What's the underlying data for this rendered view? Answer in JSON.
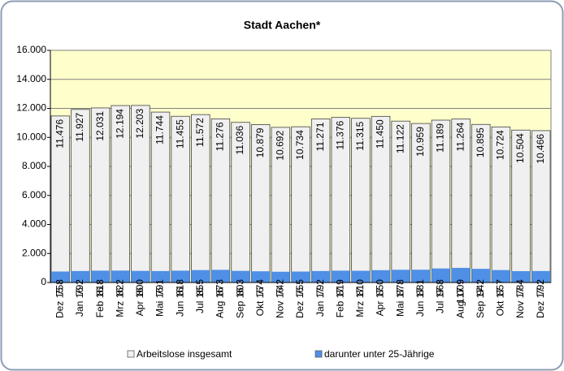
{
  "chart_data": {
    "type": "bar",
    "title": "Stadt Aachen*",
    "categories": [
      "Dez 15",
      "Jan 16",
      "Feb 16",
      "Mrz 16",
      "Apr 16",
      "Mai 16",
      "Jun 16",
      "Jul 16",
      "Aug 16",
      "Sep 16",
      "Okt 16",
      "Nov 16",
      "Dez 16",
      "Jan 17",
      "Feb 17",
      "Mrz 17",
      "Apr 17",
      "Mai 17",
      "Jun 17",
      "Jul 17",
      "Aug 17",
      "Sep 17",
      "Okt 17",
      "Nov 17",
      "Dez 17"
    ],
    "series": [
      {
        "name": "Arbeitslose insgesamt",
        "color": "#f0f0f0",
        "values": [
          11476,
          11927,
          12031,
          12194,
          12203,
          11744,
          11455,
          11572,
          11276,
          11036,
          10879,
          10692,
          10734,
          11271,
          11376,
          11315,
          11450,
          11122,
          10959,
          11189,
          11264,
          10895,
          10724,
          10504,
          10466
        ],
        "value_labels": [
          "11.476",
          "11.927",
          "12.031",
          "12.194",
          "12.203",
          "11.744",
          "11.455",
          "11.572",
          "11.276",
          "11.036",
          "10.879",
          "10.692",
          "10.734",
          "11.271",
          "11.376",
          "11.315",
          "11.450",
          "11.122",
          "10.959",
          "11.189",
          "11.264",
          "10.895",
          "10.724",
          "10.504",
          "10.466"
        ]
      },
      {
        "name": "darunter unter 25-Jährige",
        "color": "#4f8fe6",
        "values": [
          758,
          792,
          818,
          822,
          800,
          791,
          818,
          855,
          873,
          803,
          774,
          742,
          755,
          792,
          819,
          810,
          850,
          878,
          881,
          968,
          1009,
          942,
          857,
          784,
          792
        ],
        "value_labels": [
          "758",
          "792",
          "818",
          "822",
          "800",
          "791",
          "818",
          "855",
          "873",
          "803",
          "774",
          "742",
          "755",
          "792",
          "819",
          "810",
          "850",
          "878",
          "881",
          "968",
          "1.009",
          "942",
          "857",
          "784",
          "792"
        ]
      }
    ],
    "ylim": [
      0,
      16000
    ],
    "yticks": [
      {
        "value": 0,
        "label": "0"
      },
      {
        "value": 2000,
        "label": "2.000"
      },
      {
        "value": 4000,
        "label": "4.000"
      },
      {
        "value": 6000,
        "label": "6.000"
      },
      {
        "value": 8000,
        "label": "8.000"
      },
      {
        "value": 10000,
        "label": "10.000"
      },
      {
        "value": 12000,
        "label": "12.000"
      },
      {
        "value": 14000,
        "label": "14.000"
      },
      {
        "value": 16000,
        "label": "16.000"
      }
    ],
    "grid": true
  }
}
